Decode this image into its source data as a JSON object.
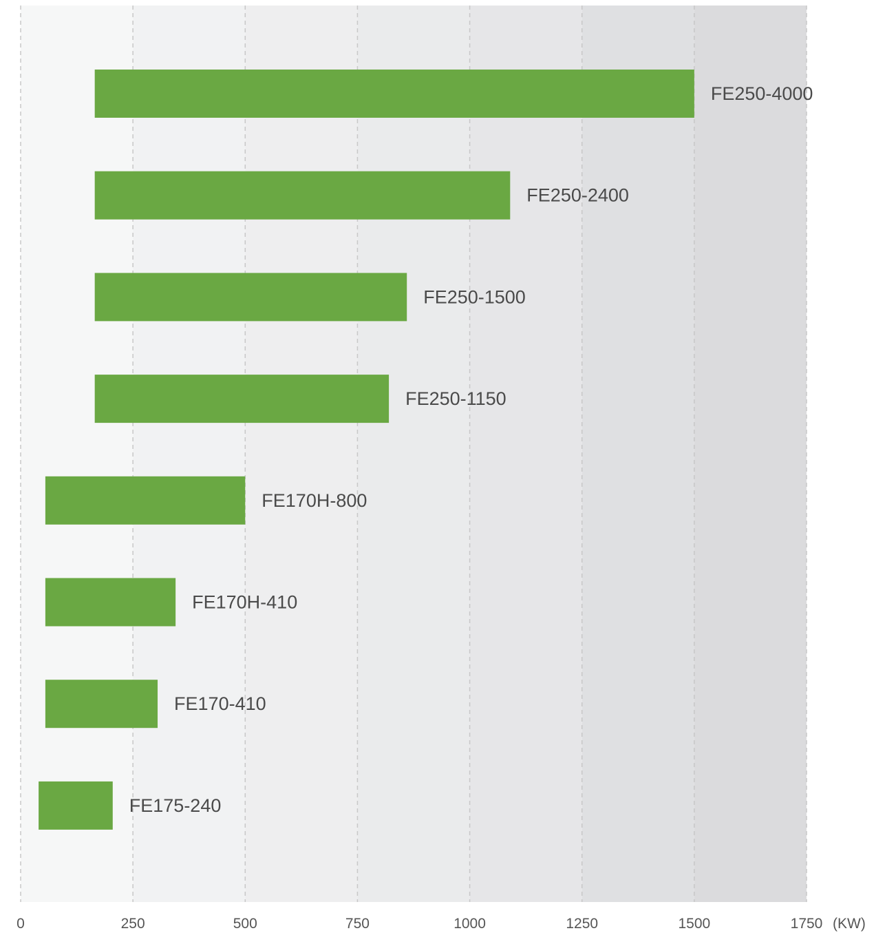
{
  "chart_data": {
    "type": "bar",
    "orientation": "horizontal",
    "range_bars": true,
    "categories": [
      "FE250-4000",
      "FE250-2400",
      "FE250-1500",
      "FE250-1150",
      "FE170H-800",
      "FE170H-410",
      "FE170-410",
      "FE175-240"
    ],
    "series": [
      {
        "ranges": [
          [
            165,
            1500
          ],
          [
            165,
            1090
          ],
          [
            165,
            860
          ],
          [
            165,
            820
          ],
          [
            55,
            500
          ],
          [
            55,
            345
          ],
          [
            55,
            305
          ],
          [
            40,
            205
          ]
        ]
      }
    ],
    "xlim": [
      0,
      1750
    ],
    "x_ticks": [
      "0",
      "250",
      "500",
      "750",
      "1000",
      "1250",
      "1500",
      "1750"
    ],
    "x_unit": "(KW)",
    "grid": true,
    "background_bands": true,
    "title": "",
    "xlabel": "",
    "ylabel": ""
  },
  "colors": {
    "bar": "#6aa843",
    "grid": "#c8c8c8",
    "bands": [
      "#f6f7f7",
      "#f1f2f3",
      "#eeeeef",
      "#eaebec",
      "#e6e6e8",
      "#dfe0e2",
      "#dbdbdd"
    ]
  }
}
